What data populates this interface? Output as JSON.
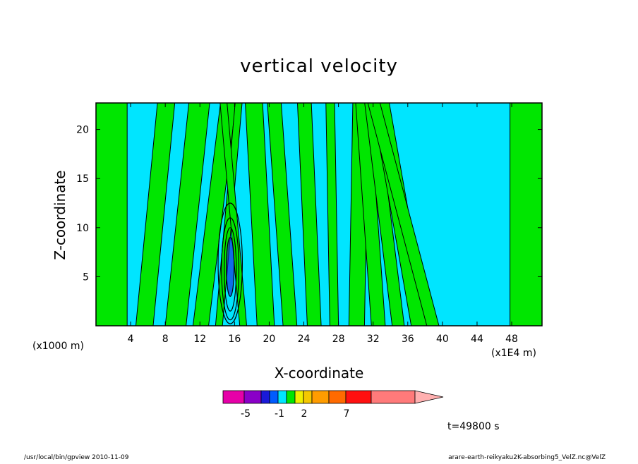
{
  "chart_data": {
    "type": "heatmap",
    "title": "vertical velocity",
    "xlabel": "X-coordinate",
    "ylabel": "Z-coordinate",
    "x_unit_left": "(x1000 m)",
    "x_unit_right": "(x1E4 m)",
    "xlim": [
      0,
      51.5
    ],
    "ylim": [
      0,
      22.7
    ],
    "x_ticks": [
      "4",
      "8",
      "12",
      "16",
      "20",
      "24",
      "28",
      "32",
      "36",
      "40",
      "44",
      "48"
    ],
    "x_tick_values": [
      4,
      8,
      12,
      16,
      20,
      24,
      28,
      32,
      36,
      40,
      44,
      48
    ],
    "y_ticks": [
      "5",
      "10",
      "15",
      "20"
    ],
    "y_tick_values": [
      5,
      10,
      15,
      20
    ],
    "grid": false,
    "background_color": "#00e5ff",
    "updraft_color": "#00e600",
    "contour_color": "#000000",
    "colorbar": {
      "labels": [
        "-5",
        "-1",
        "2",
        "7"
      ],
      "colors": [
        "#e600a8",
        "#8a00c8",
        "#1a1ad8",
        "#005cff",
        "#00e5ff",
        "#00e600",
        "#f0f000",
        "#f5c800",
        "#ff9c00",
        "#ff6a00",
        "#ff1010",
        "#ff7a7a",
        "#ffb0b0"
      ]
    },
    "time_label": "t=49800 s",
    "convective_core_x": 15.5,
    "updraft_bands": [
      {
        "x0": 0.0,
        "x1": 3.6,
        "tilt": 0.0
      },
      {
        "x0": 4.6,
        "x1": 6.6,
        "tilt": 0.11
      },
      {
        "x0": 8.0,
        "x1": 10.4,
        "tilt": 0.12
      },
      {
        "x0": 11.2,
        "x1": 13.0,
        "tilt": 0.14
      },
      {
        "x0": 13.8,
        "x1": 14.6,
        "tilt": 0.1
      },
      {
        "x0": 16.6,
        "x1": 17.4,
        "tilt": -0.1
      },
      {
        "x0": 18.6,
        "x1": 20.6,
        "tilt": -0.06
      },
      {
        "x0": 21.6,
        "x1": 23.2,
        "tilt": -0.08
      },
      {
        "x0": 24.4,
        "x1": 26.0,
        "tilt": -0.05
      },
      {
        "x0": 27.0,
        "x1": 28.0,
        "tilt": -0.02
      },
      {
        "x0": 29.2,
        "x1": 31.0,
        "tilt": 0.02
      },
      {
        "x0": 31.8,
        "x1": 33.4,
        "tilt": -0.08
      },
      {
        "x0": 34.2,
        "x1": 35.6,
        "tilt": -0.14
      },
      {
        "x0": 36.4,
        "x1": 38.4,
        "tilt": -0.2
      },
      {
        "x0": 38.2,
        "x1": 39.6,
        "tilt": -0.3
      },
      {
        "x0": 47.8,
        "x1": 51.5,
        "tilt": 0.0
      }
    ]
  },
  "footer": {
    "left": "/usr/local/bin/gpview   2010-11-09",
    "right": "arare-earth-reikyaku2K-absorbing5_VelZ.nc@VelZ"
  }
}
